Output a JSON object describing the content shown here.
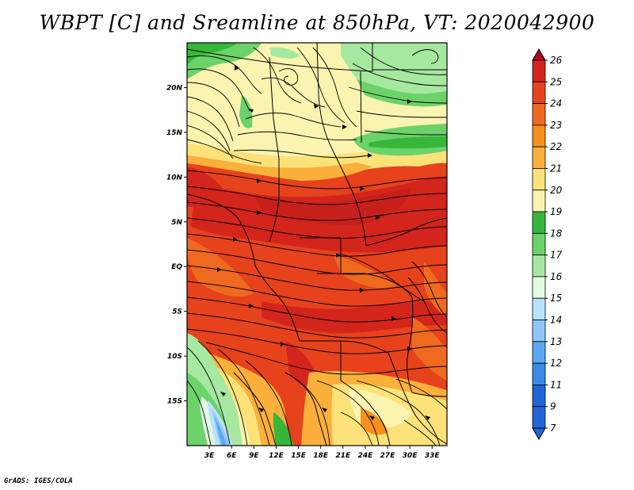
{
  "title": "WBPT [C] and Sreamline at 850hPa, VT: 2020042900",
  "credit": "GrADS: IGES/COLA",
  "map": {
    "lon_range": [
      0,
      35
    ],
    "lat_range": [
      -20,
      25
    ],
    "lon_ticks": [
      "3E",
      "6E",
      "9E",
      "12E",
      "15E",
      "18E",
      "21E",
      "24E",
      "27E",
      "30E",
      "33E"
    ],
    "lat_ticks": [
      "20N",
      "15N",
      "10N",
      "5N",
      "EQ",
      "5S",
      "10S",
      "15S"
    ],
    "variable": "Wet-bulb potential temperature",
    "units": "C",
    "level": "850hPa"
  },
  "colorbar": {
    "labels": [
      "26",
      "25",
      "24",
      "23",
      "22",
      "21",
      "20",
      "19",
      "18",
      "17",
      "16",
      "15",
      "14",
      "13",
      "12",
      "11",
      "9",
      "7"
    ],
    "colors": [
      "#b4081e",
      "#d3251c",
      "#e6421c",
      "#ef6a1e",
      "#f7901c",
      "#fbb03c",
      "#fde27a",
      "#fbf4b0",
      "#36b73a",
      "#6cd26a",
      "#a6e8a0",
      "#e2fbe2",
      "#b9e2fd",
      "#8dc8f8",
      "#5ca8f0",
      "#3a8ae8",
      "#1f66d6",
      "#1f66d6"
    ]
  }
}
